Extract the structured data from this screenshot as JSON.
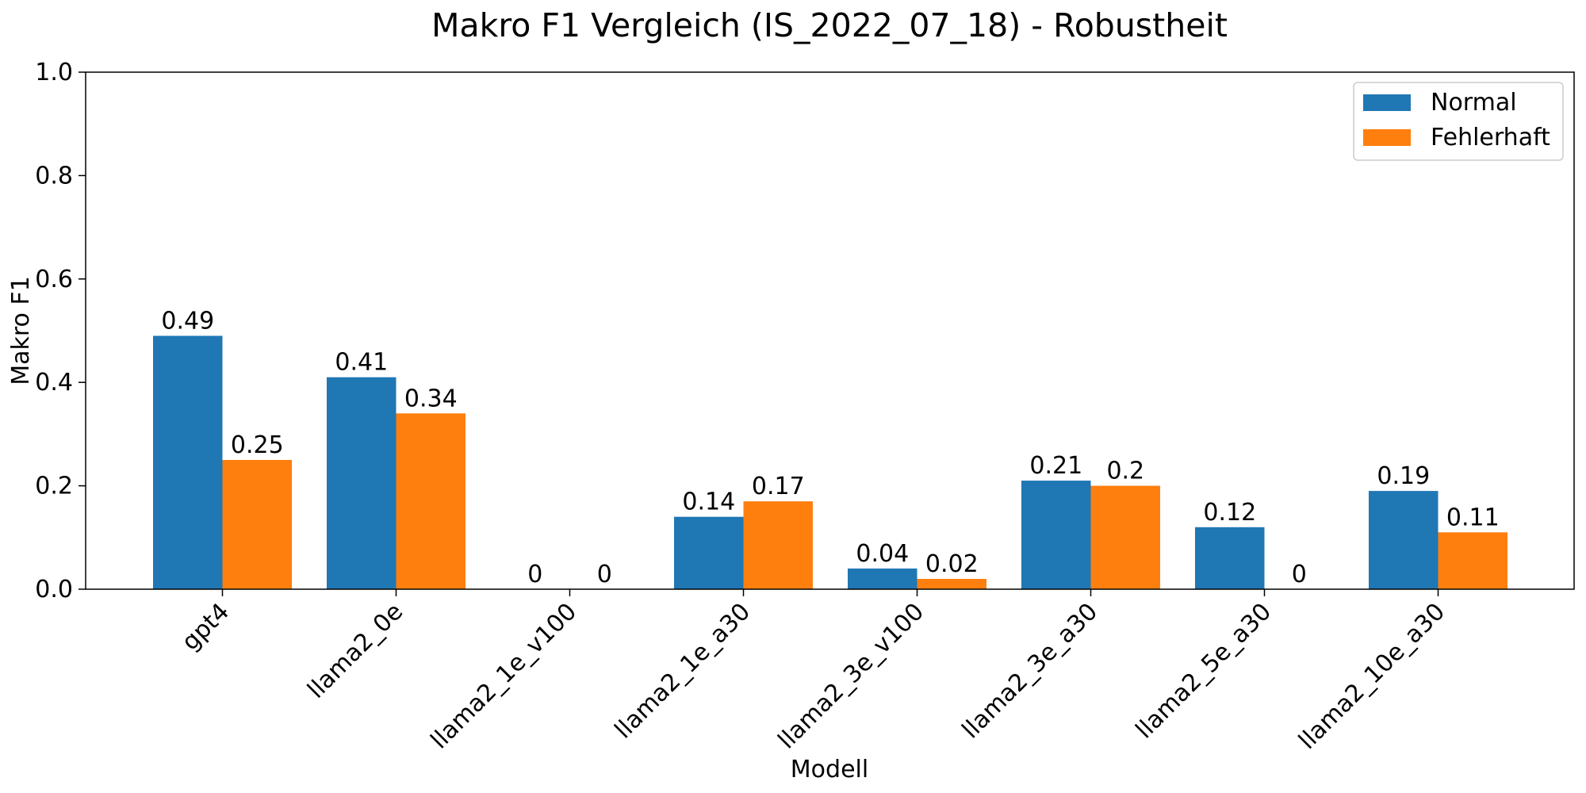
{
  "chart_data": {
    "type": "bar",
    "title": "Makro F1 Vergleich (IS_2022_07_18) - Robustheit",
    "xlabel": "Modell",
    "ylabel": "Makro F1",
    "ylim": [
      0,
      1.0
    ],
    "yticks": [
      0.0,
      0.2,
      0.4,
      0.6,
      0.8,
      1.0
    ],
    "ytick_labels": [
      "0.0",
      "0.2",
      "0.4",
      "0.6",
      "0.8",
      "1.0"
    ],
    "categories": [
      "gpt4",
      "llama2_0e",
      "llama2_1e_v100",
      "llama2_1e_a30",
      "llama2_3e_v100",
      "llama2_3e_a30",
      "llama2_5e_a30",
      "llama2_10e_a30"
    ],
    "series": [
      {
        "name": "Normal",
        "color": "#1f77b4",
        "values": [
          0.49,
          0.41,
          0,
          0.14,
          0.04,
          0.21,
          0.12,
          0.19
        ],
        "labels": [
          "0.49",
          "0.41",
          "0",
          "0.14",
          "0.04",
          "0.21",
          "0.12",
          "0.19"
        ]
      },
      {
        "name": "Fehlerhaft",
        "color": "#ff7f0e",
        "values": [
          0.25,
          0.34,
          0,
          0.17,
          0.02,
          0.2,
          0,
          0.11
        ],
        "labels": [
          "0.25",
          "0.34",
          "0",
          "0.17",
          "0.02",
          "0.2",
          "0",
          "0.11"
        ]
      }
    ],
    "grid": false,
    "legend_position": "top-right",
    "x_tick_rotation": "45°"
  }
}
